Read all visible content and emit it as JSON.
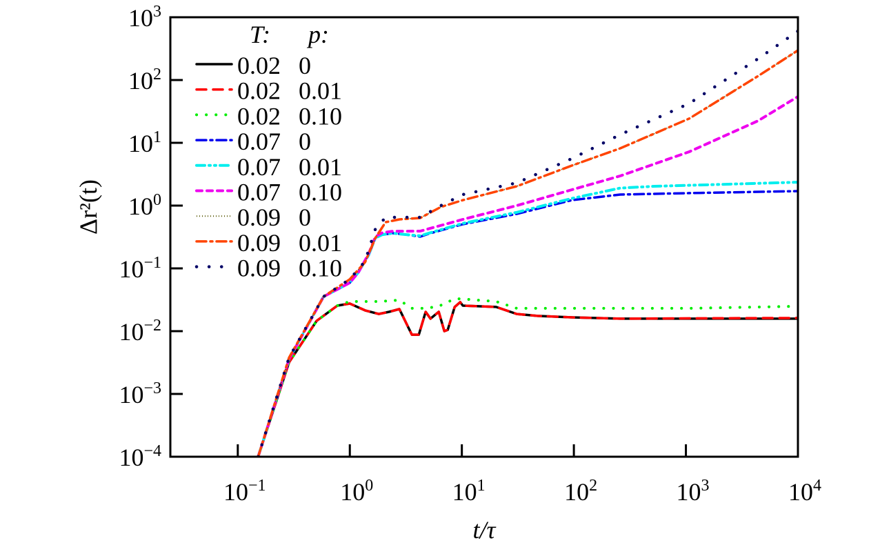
{
  "chart_data": {
    "type": "line",
    "xlabel": "t/τ",
    "ylabel": "Δr²(t)",
    "xscale": "log",
    "yscale": "log",
    "xlim": [
      0.025,
      10000
    ],
    "ylim": [
      0.0001,
      1000
    ],
    "grid": false,
    "legend_placement": "top-left",
    "legend_header": {
      "T": "T:",
      "p": "p:"
    },
    "x_ticks": [
      {
        "base": "10",
        "exp": "−1"
      },
      {
        "base": "10",
        "exp": "0"
      },
      {
        "base": "10",
        "exp": "1"
      },
      {
        "base": "10",
        "exp": "2"
      },
      {
        "base": "10",
        "exp": "3"
      },
      {
        "base": "10",
        "exp": "4"
      }
    ],
    "x_tick_values": [
      0.1,
      1,
      10,
      100,
      1000,
      10000
    ],
    "y_ticks": [
      {
        "base": "10",
        "exp": "−4"
      },
      {
        "base": "10",
        "exp": "−3"
      },
      {
        "base": "10",
        "exp": "−2"
      },
      {
        "base": "10",
        "exp": "−1"
      },
      {
        "base": "10",
        "exp": "0"
      },
      {
        "base": "10",
        "exp": "1"
      },
      {
        "base": "10",
        "exp": "2"
      },
      {
        "base": "10",
        "exp": "3"
      }
    ],
    "y_tick_values": [
      0.0001,
      0.001,
      0.01,
      0.1,
      1,
      10,
      100,
      1000
    ],
    "series": [
      {
        "T": "0.02",
        "p": "0",
        "color": "#000000",
        "style": "solid",
        "x": [
          0.152,
          0.287,
          0.506,
          0.774,
          1,
          1.37,
          1.81,
          2.24,
          2.77,
          3.58,
          4.13,
          4.75,
          5.25,
          6.22,
          6.98,
          7.48,
          8.63,
          9.67,
          10.2,
          20.2,
          30.9,
          47.3,
          96,
          259,
          1070,
          10000
        ],
        "y": [
          0.0001,
          0.0032,
          0.0146,
          0.0255,
          0.0275,
          0.0214,
          0.0188,
          0.0203,
          0.0225,
          0.0088,
          0.0088,
          0.0203,
          0.0158,
          0.0203,
          0.01,
          0.0105,
          0.0243,
          0.029,
          0.0255,
          0.0243,
          0.0188,
          0.0175,
          0.0166,
          0.0158,
          0.0158,
          0.0158
        ]
      },
      {
        "T": "0.02",
        "p": "0.01",
        "color": "#ff0000",
        "style": "dashed",
        "x": [
          0.152,
          0.287,
          0.506,
          0.774,
          1,
          1.37,
          1.81,
          2.24,
          2.77,
          3.58,
          4.13,
          4.75,
          5.25,
          6.22,
          6.98,
          7.48,
          8.63,
          9.67,
          10.2,
          20.2,
          30.9,
          47.3,
          96,
          259,
          1070,
          10000
        ],
        "y": [
          0.0001,
          0.0032,
          0.0146,
          0.0255,
          0.0275,
          0.0214,
          0.0188,
          0.0203,
          0.0225,
          0.0088,
          0.0088,
          0.0203,
          0.0158,
          0.0203,
          0.01,
          0.0105,
          0.0243,
          0.029,
          0.0255,
          0.0243,
          0.0188,
          0.0175,
          0.0166,
          0.0158,
          0.016,
          0.0162
        ]
      },
      {
        "T": "0.02",
        "p": "0.10",
        "color": "#00ee00",
        "style": "dotted",
        "x": [
          0.152,
          0.287,
          0.506,
          0.774,
          1,
          1.37,
          1.81,
          2.77,
          3.58,
          4.75,
          6.22,
          8.63,
          9.67,
          20.2,
          30.9,
          96,
          1070,
          10000
        ],
        "y": [
          0.0001,
          0.0032,
          0.0146,
          0.0255,
          0.0297,
          0.0297,
          0.0297,
          0.0312,
          0.0231,
          0.0231,
          0.0249,
          0.0328,
          0.0328,
          0.0297,
          0.0231,
          0.0231,
          0.0231,
          0.0249
        ]
      },
      {
        "T": "0.07",
        "p": "0",
        "color": "#0000ee",
        "style": "dashdot",
        "x": [
          0.152,
          0.287,
          0.583,
          1,
          1.19,
          1.47,
          1.69,
          1.95,
          2.41,
          3.2,
          4.25,
          5.25,
          10.2,
          30.9,
          96,
          259,
          1070,
          10000
        ],
        "y": [
          0.0001,
          0.0036,
          0.0355,
          0.059,
          0.086,
          0.162,
          0.305,
          0.345,
          0.363,
          0.345,
          0.32,
          0.363,
          0.505,
          0.738,
          1.22,
          1.5,
          1.58,
          1.7
        ]
      },
      {
        "T": "0.07",
        "p": "0.01",
        "color": "#00eeee",
        "style": "dashdotdot",
        "x": [
          0.152,
          0.287,
          0.583,
          1,
          1.19,
          1.47,
          1.69,
          1.95,
          2.41,
          3.2,
          4.25,
          5.25,
          10.2,
          30.9,
          96,
          259,
          526,
          10000
        ],
        "y": [
          0.0001,
          0.0036,
          0.0355,
          0.059,
          0.086,
          0.162,
          0.305,
          0.345,
          0.363,
          0.345,
          0.33,
          0.37,
          0.52,
          0.78,
          1.3,
          1.9,
          2.03,
          2.36
        ]
      },
      {
        "T": "0.07",
        "p": "0.10",
        "color": "#ee00ee",
        "style": "shortdash",
        "x": [
          0.152,
          0.287,
          0.583,
          1,
          1.19,
          1.47,
          1.69,
          1.95,
          2.41,
          4.25,
          10.2,
          30.9,
          96,
          259,
          1070,
          4420,
          10000
        ],
        "y": [
          0.0001,
          0.0036,
          0.0355,
          0.059,
          0.086,
          0.17,
          0.32,
          0.37,
          0.39,
          0.392,
          0.603,
          1,
          1.79,
          2.97,
          7.2,
          22.5,
          54.5
        ]
      },
      {
        "T": "0.09",
        "p": "0",
        "color": "#555500",
        "style": "finedot",
        "x": [
          0.152,
          0.287,
          0.583,
          1,
          1.37,
          1.69,
          2.09,
          2.77,
          4.25,
          6.5,
          10.2,
          30.9,
          96,
          259,
          1070,
          4420,
          10000
        ],
        "y": [
          0.0001,
          0.0038,
          0.0355,
          0.067,
          0.126,
          0.305,
          0.545,
          0.603,
          0.634,
          0.95,
          1.22,
          2.03,
          4.34,
          8.17,
          24.3,
          116,
          297
        ]
      },
      {
        "T": "0.09",
        "p": "0.01",
        "color": "#ff4400",
        "style": "dashdot",
        "x": [
          0.152,
          0.287,
          0.583,
          1,
          1.37,
          1.69,
          2.09,
          2.77,
          4.25,
          6.5,
          10.2,
          30.9,
          96,
          259,
          1070,
          4420,
          10000
        ],
        "y": [
          0.0001,
          0.0038,
          0.0355,
          0.067,
          0.126,
          0.305,
          0.545,
          0.603,
          0.634,
          0.95,
          1.22,
          2.03,
          4.34,
          8.17,
          24.3,
          116,
          297
        ]
      },
      {
        "T": "0.09",
        "p": "0.10",
        "color": "#000066",
        "style": "sparsedot",
        "x": [
          0.152,
          0.287,
          0.583,
          1,
          1.37,
          1.69,
          2.09,
          4.25,
          6.5,
          10.2,
          30.9,
          96,
          259,
          1070,
          4420,
          10000
        ],
        "y": [
          0.0001,
          0.0038,
          0.0355,
          0.067,
          0.13,
          0.423,
          0.65,
          0.65,
          1.0,
          1.5,
          2.3,
          5.6,
          13.5,
          42.3,
          219,
          603
        ]
      }
    ]
  }
}
